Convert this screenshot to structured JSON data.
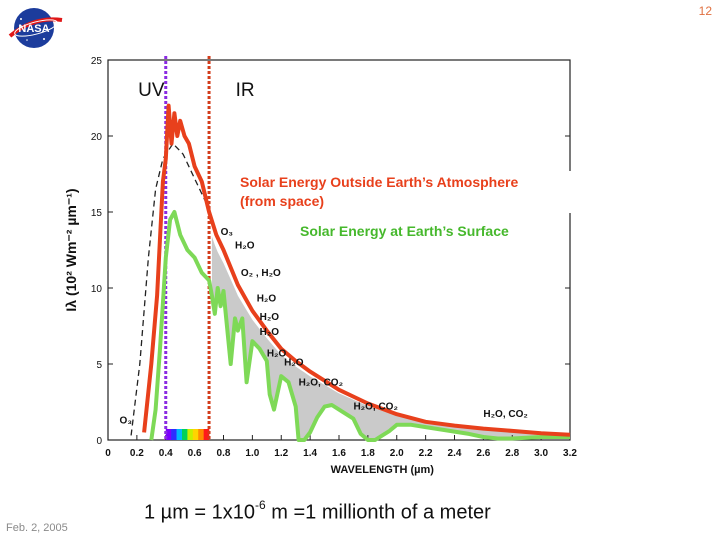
{
  "slide": {
    "number": "12",
    "date": "Feb. 2, 2005",
    "logo_text": "NASA",
    "footnote": {
      "pre": "1  µm = 1x10",
      "exp": "-6",
      "post": " m =1 millionth of a meter"
    }
  },
  "colors": {
    "top_of_atmosphere": "#e8401c",
    "surface": "#7ed957",
    "uv_line": "#8a2be2",
    "ir_line": "#d23c1a",
    "absorption_fill": "#b8b8b8"
  },
  "chart_data": {
    "type": "line",
    "xlabel": "WAVELENGTH",
    "xlabel_unit": "(µm)",
    "ylabel": "Iλ (10² Wm⁻² µm⁻¹)",
    "xlim": [
      0,
      3.2
    ],
    "ylim": [
      0,
      25
    ],
    "x_ticks": [
      "0",
      "0.2",
      "0.4",
      "0.6",
      "0.8",
      "1.0",
      "1.2",
      "1.4",
      "1.6",
      "1.8",
      "2.0",
      "2.2",
      "2.4",
      "2.6",
      "2.8",
      "3.0",
      "3.2"
    ],
    "y_ticks": [
      "0",
      "5",
      "10",
      "15",
      "20",
      "25"
    ],
    "region_labels": [
      {
        "text": "UV",
        "x": 0.3
      },
      {
        "text": "IR",
        "x": 0.95
      }
    ],
    "vertical_lines": [
      {
        "name": "uv-boundary",
        "x": 0.4
      },
      {
        "name": "ir-boundary",
        "x": 0.7
      }
    ],
    "series": [
      {
        "name": "Solar Energy Outside Earth’s Atmosphere (from space)",
        "color": "#e8401c",
        "x": [
          0.25,
          0.3,
          0.34,
          0.38,
          0.4,
          0.42,
          0.44,
          0.46,
          0.48,
          0.5,
          0.53,
          0.56,
          0.6,
          0.65,
          0.7,
          0.75,
          0.8,
          0.9,
          1.0,
          1.1,
          1.2,
          1.3,
          1.4,
          1.5,
          1.6,
          1.8,
          2.0,
          2.2,
          2.4,
          2.6,
          2.8,
          3.0,
          3.2
        ],
        "y": [
          0.5,
          5,
          9.5,
          17,
          18.5,
          22,
          19.5,
          21.5,
          20,
          21,
          20,
          19.5,
          18,
          17,
          15,
          13.5,
          12.5,
          10.2,
          8.5,
          7.2,
          6.0,
          5.2,
          4.5,
          3.9,
          3.3,
          2.4,
          1.7,
          1.2,
          0.95,
          0.75,
          0.6,
          0.45,
          0.35
        ]
      },
      {
        "name": "Solar Energy at Earth’s Surface",
        "color": "#7ed957",
        "x": [
          0.3,
          0.33,
          0.36,
          0.4,
          0.43,
          0.46,
          0.5,
          0.55,
          0.6,
          0.65,
          0.7,
          0.72,
          0.74,
          0.76,
          0.78,
          0.8,
          0.85,
          0.88,
          0.9,
          0.93,
          0.96,
          1.0,
          1.05,
          1.1,
          1.12,
          1.15,
          1.2,
          1.25,
          1.3,
          1.32,
          1.36,
          1.4,
          1.45,
          1.5,
          1.55,
          1.6,
          1.7,
          1.75,
          1.8,
          1.85,
          1.9,
          1.95,
          2.0,
          2.1,
          2.2,
          2.3,
          2.4,
          2.5,
          2.6,
          2.7,
          2.8,
          2.9,
          3.0,
          3.2
        ],
        "y": [
          0,
          2,
          6,
          12,
          14.5,
          15,
          13.5,
          12.5,
          12,
          11,
          10.5,
          9.5,
          8.3,
          10,
          8.8,
          9.8,
          5,
          8,
          7.2,
          8,
          3.8,
          6.5,
          6,
          5.2,
          3,
          2,
          4.2,
          3.8,
          2.2,
          0,
          0,
          0.5,
          1.5,
          2.2,
          2.3,
          2.0,
          1.4,
          0.4,
          0,
          0,
          0.3,
          0.6,
          1.0,
          1.0,
          0.85,
          0.7,
          0.55,
          0.4,
          0.2,
          0.1,
          0.1,
          0.15,
          0.2,
          0.2
        ]
      }
    ],
    "annotations": [
      {
        "text": "O₃",
        "x": 0.08,
        "y": 1.1
      },
      {
        "text": "O₃",
        "x": 0.78,
        "y": 13.5
      },
      {
        "text": "H₂O",
        "x": 0.88,
        "y": 12.6
      },
      {
        "text": "O₂ , H₂O",
        "x": 0.92,
        "y": 10.8
      },
      {
        "text": "H₂O",
        "x": 1.03,
        "y": 9.1
      },
      {
        "text": "H₂O",
        "x": 1.05,
        "y": 7.9
      },
      {
        "text": "H₂O",
        "x": 1.05,
        "y": 6.9
      },
      {
        "text": "H₂O",
        "x": 1.1,
        "y": 5.5
      },
      {
        "text": "H₂O",
        "x": 1.22,
        "y": 4.9
      },
      {
        "text": "H₂O, CO₂",
        "x": 1.32,
        "y": 3.6
      },
      {
        "text": "H₂O, CO₂",
        "x": 1.7,
        "y": 2.0
      },
      {
        "text": "H₂O, CO₂",
        "x": 2.6,
        "y": 1.5
      }
    ],
    "labels": {
      "top": {
        "line1": "Solar Energy Outside Earth’s Atmosphere",
        "line2": "(from space)"
      },
      "surface": "Solar Energy at Earth’s Surface"
    }
  }
}
